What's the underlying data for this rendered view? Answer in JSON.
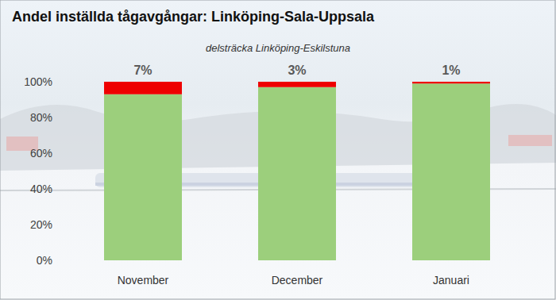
{
  "chart_data": {
    "type": "bar",
    "stacked": true,
    "title": "Andel inställda tågavgångar: Linköping-Sala-Uppsala",
    "subtitle": "delsträcka Linköping-Eskilstuna",
    "categories": [
      "November",
      "December",
      "Januari"
    ],
    "series": [
      {
        "color": "#9ccf7c",
        "values": [
          93,
          97,
          99
        ]
      },
      {
        "color": "#ee0000",
        "values": [
          7,
          3,
          1
        ],
        "value_labels": [
          "7%",
          "3%",
          "1%"
        ]
      }
    ],
    "data_labels": true,
    "grid": false,
    "ylim": [
      0,
      100
    ],
    "yticks": [
      {
        "value": 0,
        "label": "0%"
      },
      {
        "value": 20,
        "label": "20%"
      },
      {
        "value": 40,
        "label": "40%"
      },
      {
        "value": 60,
        "label": "60%"
      },
      {
        "value": 80,
        "label": "80%"
      },
      {
        "value": 100,
        "label": "100%"
      }
    ]
  }
}
